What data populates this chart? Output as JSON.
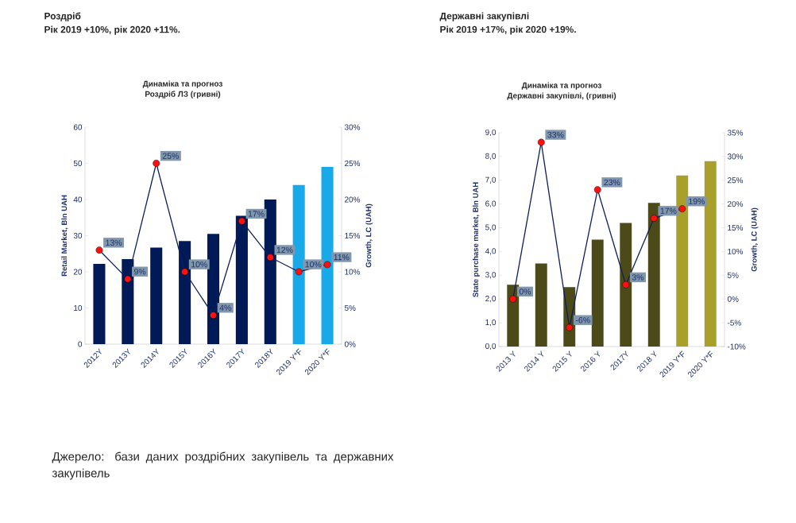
{
  "chart_data": [
    {
      "type": "bar",
      "title": "Роздріб",
      "subtitle": "Рік 2019 +10%, рік 2020 +11%.",
      "annotations": [
        "Динаміка та прогноз",
        "Роздріб ЛЗ (гривні)",
        "Джерело: бази даних роздрібних закупівель та державних закупівель"
      ],
      "ylabel": "Retail Market, Bln UAH",
      "y2label": "Growth, LC (UAH)",
      "categories": [
        "2012Y",
        "2013Y",
        "2014Y",
        "2015Y",
        "2016Y",
        "2017Y",
        "2018Y",
        "2019 Y*F",
        "2020 Y*F"
      ],
      "series": [
        {
          "type": "bar",
          "values": [
            22.2,
            23.5,
            26.7,
            28.5,
            30.5,
            35.5,
            40,
            44,
            49
          ],
          "colors": [
            "#001a57",
            "#001a57",
            "#001a57",
            "#001a57",
            "#001a57",
            "#001a57",
            "#001a57",
            "#17a9e8",
            "#17a9e8"
          ]
        },
        {
          "type": "line",
          "axis": "y2",
          "color": "#0d1f5c",
          "marker": "circle",
          "values": [
            13,
            9,
            25,
            10,
            4,
            17,
            12,
            10,
            11
          ],
          "colors": [
            "#ff1010",
            "#ff1010",
            "#ff1010",
            "#ff1010",
            "#ff1010",
            "#ff1010",
            "#ff1010",
            "#ff1010",
            "#ff1010"
          ],
          "value_labels": [
            "13%",
            "9%",
            "25%",
            "10%",
            "4%",
            "17%",
            "12%",
            "10%",
            "11%"
          ]
        }
      ],
      "ylim": [
        0,
        60
      ],
      "yticks": [
        0,
        10,
        20,
        30,
        40,
        50,
        60
      ],
      "y2lim": [
        0,
        30
      ],
      "y2ticks": [
        {
          "value": 0,
          "label": "0%"
        },
        {
          "value": 5,
          "label": "5%"
        },
        {
          "value": 10,
          "label": "10%"
        },
        {
          "value": 15,
          "label": "15%"
        },
        {
          "value": 20,
          "label": "20%"
        },
        {
          "value": 25,
          "label": "25%"
        },
        {
          "value": 30,
          "label": "30%"
        }
      ]
    },
    {
      "type": "bar",
      "title": "Державні закупівлі",
      "subtitle": "Рік 2019 +17%, рік 2020 +19%.",
      "annotations": [
        "Динаміка та прогноз",
        "Державні закупівлі,  (гривні)"
      ],
      "ylabel": "State purchase market, Bln UAH",
      "y2label": "Growth, LC (UAH)",
      "categories": [
        "2013 Y",
        "2014 Y",
        "2015 Y",
        "2016 Y",
        "2017Y",
        "2018 Y",
        "2019 Y*F",
        "2020 Y*F"
      ],
      "series": [
        {
          "type": "bar",
          "values": [
            2.6,
            3.5,
            2.5,
            4.5,
            5.2,
            6.05,
            7.2,
            7.8
          ],
          "colors": [
            "#4d4a1a",
            "#4d4a1a",
            "#4d4a1a",
            "#4d4a1a",
            "#4d4a1a",
            "#4d4a1a",
            "#a8a02a",
            "#a8a02a"
          ]
        },
        {
          "type": "line",
          "axis": "y2",
          "color": "#0d1f5c",
          "marker": "circle",
          "values": [
            0,
            33,
            -6,
            23,
            3,
            17,
            19,
            null
          ],
          "colors": [
            "#ff1010",
            "#ff1010",
            "#ff1010",
            "#ff1010",
            "#ff1010",
            "#ff1010",
            "#ff1010",
            null
          ],
          "value_labels": [
            "0%",
            "33%",
            "-6%",
            "23%",
            "3%",
            "17%",
            "19%",
            null
          ]
        }
      ],
      "ylim": [
        0,
        9
      ],
      "yticks": [
        {
          "value": 0,
          "label": "0,0"
        },
        {
          "value": 1,
          "label": "1,0"
        },
        {
          "value": 2,
          "label": "2,0"
        },
        {
          "value": 3,
          "label": "3,0"
        },
        {
          "value": 4,
          "label": "4,0"
        },
        {
          "value": 5,
          "label": "5,0"
        },
        {
          "value": 6,
          "label": "6,0"
        },
        {
          "value": 7,
          "label": "7,0"
        },
        {
          "value": 8,
          "label": "8,0"
        },
        {
          "value": 9,
          "label": "9,0"
        }
      ],
      "y2lim": [
        -10,
        35
      ],
      "y2ticks": [
        {
          "value": -10,
          "label": "-10%"
        },
        {
          "value": -5,
          "label": "-5%"
        },
        {
          "value": 0,
          "label": "0%"
        },
        {
          "value": 5,
          "label": "5%"
        },
        {
          "value": 10,
          "label": "10%"
        },
        {
          "value": 15,
          "label": "15%"
        },
        {
          "value": 20,
          "label": "20%"
        },
        {
          "value": 25,
          "label": "25%"
        },
        {
          "value": 30,
          "label": "30%"
        },
        {
          "value": 35,
          "label": "35%"
        }
      ]
    }
  ]
}
